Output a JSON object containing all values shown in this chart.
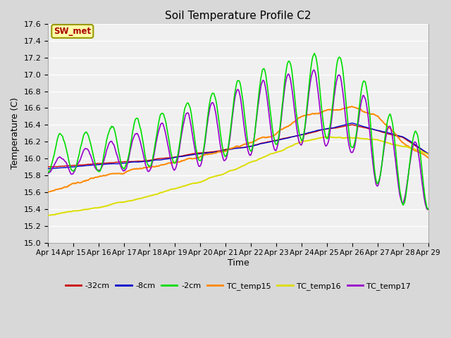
{
  "title": "Soil Temperature Profile C2",
  "xlabel": "Time",
  "ylabel": "Temperature (C)",
  "ylim": [
    15.0,
    17.6
  ],
  "yticks": [
    15.0,
    15.2,
    15.4,
    15.6,
    15.8,
    16.0,
    16.2,
    16.4,
    16.6,
    16.8,
    17.0,
    17.2,
    17.4,
    17.6
  ],
  "x_labels": [
    "Apr 14",
    "Apr 15",
    "Apr 16",
    "Apr 17",
    "Apr 18",
    "Apr 19",
    "Apr 20",
    "Apr 21",
    "Apr 22",
    "Apr 23",
    "Apr 24",
    "Apr 25",
    "Apr 26",
    "Apr 27",
    "Apr 28",
    "Apr 29"
  ],
  "legend_label": "SW_met",
  "plot_bg": "#f0f0f0",
  "fig_bg": "#d8d8d8",
  "grid_color": "#ffffff",
  "line_colors": {
    "-32cm": "#cc0000",
    "-8cm": "#0000cc",
    "-2cm": "#00dd00",
    "TC_temp15": "#ff8800",
    "TC_temp16": "#dddd00",
    "TC_temp17": "#9900cc"
  },
  "n_points": 720
}
